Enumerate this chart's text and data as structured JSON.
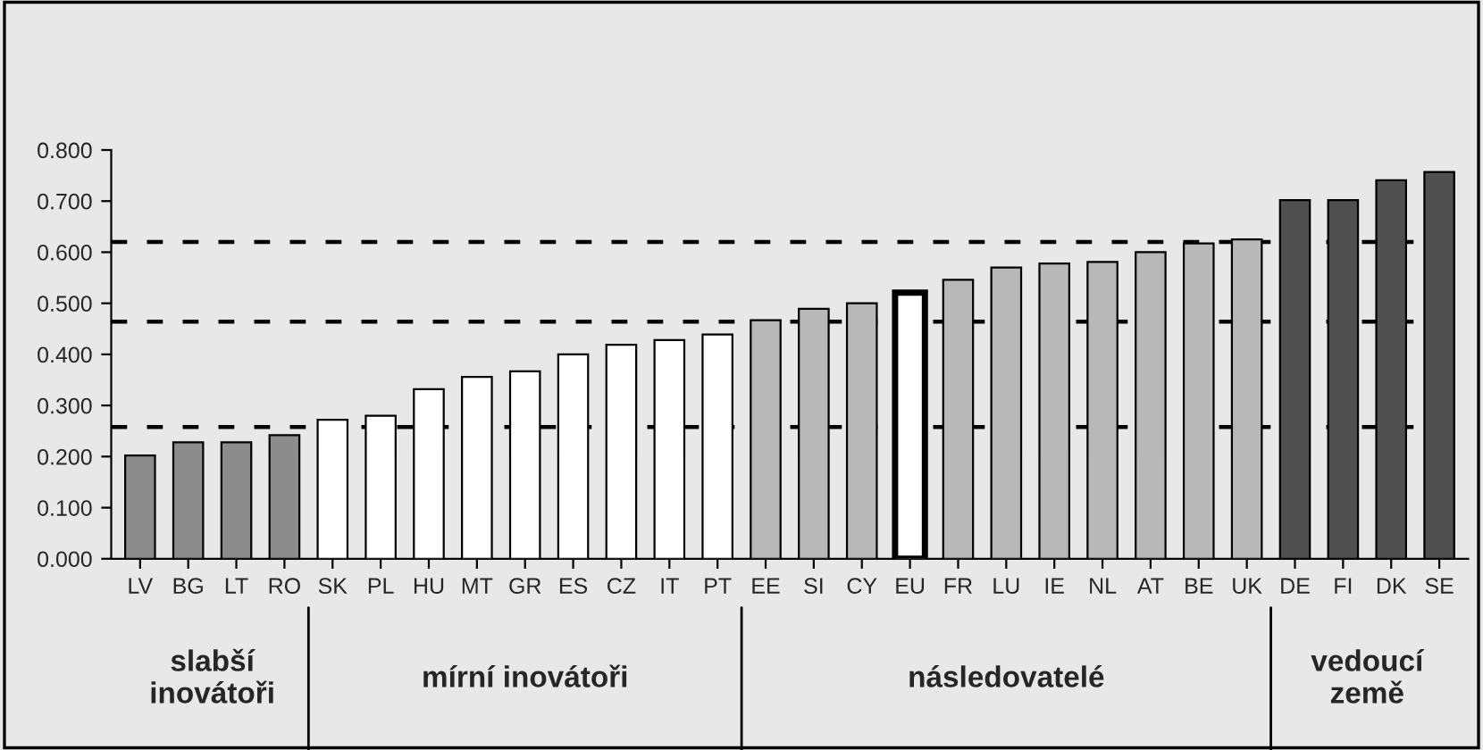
{
  "chart_data": {
    "type": "bar",
    "categories": [
      "LV",
      "BG",
      "LT",
      "RO",
      "SK",
      "PL",
      "HU",
      "MT",
      "GR",
      "ES",
      "CZ",
      "IT",
      "PT",
      "EE",
      "SI",
      "CY",
      "EU",
      "FR",
      "LU",
      "IE",
      "NL",
      "AT",
      "BE",
      "UK",
      "DE",
      "FI",
      "DK",
      "SE"
    ],
    "values": [
      0.202,
      0.228,
      0.228,
      0.242,
      0.272,
      0.28,
      0.332,
      0.356,
      0.367,
      0.4,
      0.419,
      0.428,
      0.439,
      0.467,
      0.489,
      0.5,
      0.521,
      0.546,
      0.57,
      0.578,
      0.581,
      0.6,
      0.617,
      0.625,
      0.702,
      0.702,
      0.741,
      0.757
    ],
    "colors": [
      "#8c8c8c",
      "#8c8c8c",
      "#8c8c8c",
      "#8c8c8c",
      "#ffffff",
      "#ffffff",
      "#ffffff",
      "#ffffff",
      "#ffffff",
      "#ffffff",
      "#ffffff",
      "#ffffff",
      "#ffffff",
      "#b8b8b8",
      "#b8b8b8",
      "#b8b8b8",
      "#ffffff",
      "#b8b8b8",
      "#b8b8b8",
      "#b8b8b8",
      "#b8b8b8",
      "#b8b8b8",
      "#b8b8b8",
      "#b8b8b8",
      "#505050",
      "#505050",
      "#505050",
      "#505050"
    ],
    "ylim": [
      0,
      0.8
    ],
    "yticks": [
      {
        "value": 0,
        "label": "0.000"
      },
      {
        "value": 0.1,
        "label": "0.100"
      },
      {
        "value": 0.2,
        "label": "0.200"
      },
      {
        "value": 0.3,
        "label": "0.300"
      },
      {
        "value": 0.4,
        "label": "0.400"
      },
      {
        "value": 0.5,
        "label": "0.500"
      },
      {
        "value": 0.6,
        "label": "0.600"
      },
      {
        "value": 0.7,
        "label": "0.700"
      },
      {
        "value": 0.8,
        "label": "0.800"
      }
    ],
    "ref_lines": [
      {
        "axis": "y",
        "value": 0.258,
        "line_style": "dashed",
        "color": "#000000"
      },
      {
        "axis": "y",
        "value": 0.464,
        "line_style": "dashed",
        "color": "#000000"
      },
      {
        "axis": "y",
        "value": 0.62,
        "line_style": "dashed",
        "color": "#000000"
      }
    ],
    "annotations": [
      "slabší\ninovátoři",
      "mírní inovátoři",
      "následovatelé",
      "vedoucí\nzemě"
    ],
    "grid": false,
    "legend": false
  }
}
